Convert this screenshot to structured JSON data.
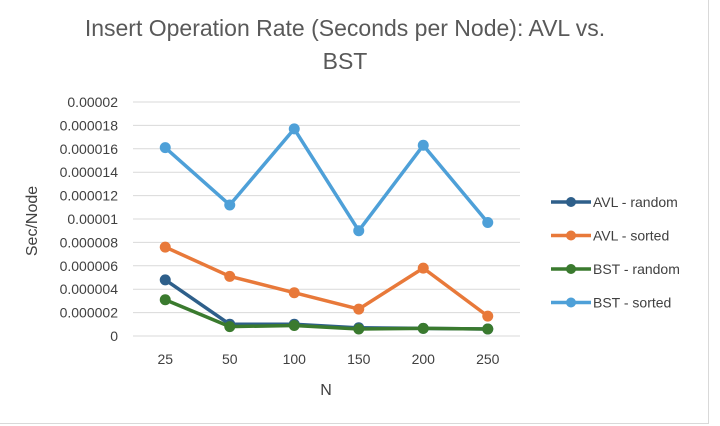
{
  "chart_data": {
    "type": "line",
    "title": "Insert Operation Rate (Seconds per Node): AVL vs. BST",
    "xlabel": "N",
    "ylabel": "Sec/Node",
    "categories": [
      "25",
      "50",
      "100",
      "150",
      "200",
      "250"
    ],
    "ylim": [
      0,
      2e-05
    ],
    "y_ticks": [
      "0",
      "0.000002",
      "0.000004",
      "0.000006",
      "0.000008",
      "0.00001",
      "0.000012",
      "0.000014",
      "0.000016",
      "0.000018",
      "0.00002"
    ],
    "grid": true,
    "legend_position": "right",
    "series": [
      {
        "name": "AVL - random",
        "color": "#2e5f8a",
        "values": [
          4.8e-06,
          1e-06,
          1e-06,
          7e-07,
          6.5e-07,
          6e-07
        ]
      },
      {
        "name": "AVL - sorted",
        "color": "#e8793a",
        "values": [
          7.6e-06,
          5.1e-06,
          3.7e-06,
          2.3e-06,
          5.8e-06,
          1.7e-06
        ]
      },
      {
        "name": "BST - random",
        "color": "#3a7a2e",
        "values": [
          3.1e-06,
          8e-07,
          9e-07,
          6e-07,
          6.5e-07,
          6e-07
        ]
      },
      {
        "name": "BST - sorted",
        "color": "#4ea0d8",
        "values": [
          1.61e-05,
          1.12e-05,
          1.77e-05,
          9e-06,
          1.63e-05,
          9.7e-06
        ]
      }
    ]
  }
}
